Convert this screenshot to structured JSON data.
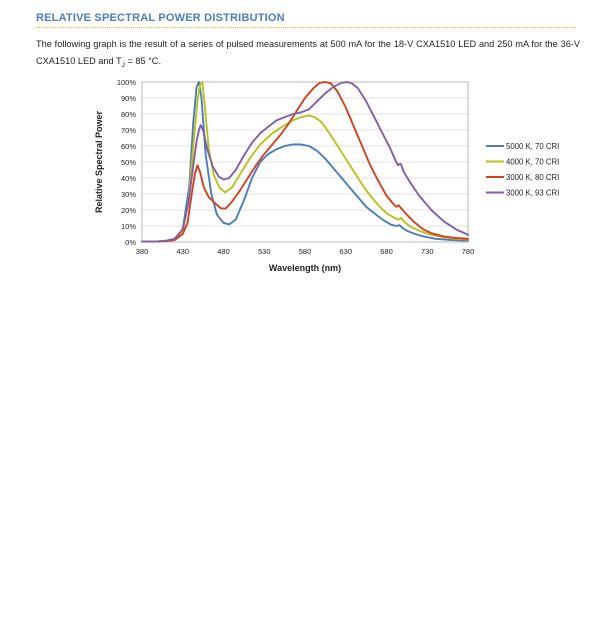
{
  "section_title": "RELATIVE SPECTRAL POWER DISTRIBUTION",
  "intro": {
    "before_sub": "The following graph is the result of a series of pulsed measurements at 500 mA for the 18-V CXA1510 LED and 250 mA for the 36-V CXA1510 LED and T",
    "sub": "J",
    "after_sub": " = 85 °C."
  },
  "chart_data": {
    "type": "line",
    "title": "",
    "xlabel": "Wavelength (nm)",
    "ylabel": "Relative Spectral Power",
    "xlim": [
      380,
      780
    ],
    "ylim": [
      0,
      100
    ],
    "x_ticks": [
      "380",
      "430",
      "480",
      "530",
      "580",
      "630",
      "680",
      "730",
      "780"
    ],
    "y_ticks": [
      "0%",
      "10%",
      "20%",
      "30%",
      "40%",
      "50%",
      "60%",
      "70%",
      "80%",
      "90%",
      "100%"
    ],
    "grid": true,
    "legend_position": "right",
    "series": [
      {
        "name": "5000 K, 70 CRI",
        "color": "#4a7ebb",
        "points": [
          [
            380,
            0.3
          ],
          [
            400,
            0.4
          ],
          [
            410,
            0.8
          ],
          [
            420,
            2
          ],
          [
            430,
            8
          ],
          [
            438,
            35
          ],
          [
            443,
            75
          ],
          [
            447,
            97
          ],
          [
            450,
            100
          ],
          [
            453,
            90
          ],
          [
            458,
            55
          ],
          [
            465,
            30
          ],
          [
            472,
            17
          ],
          [
            480,
            12
          ],
          [
            487,
            11
          ],
          [
            495,
            14
          ],
          [
            505,
            26
          ],
          [
            515,
            40
          ],
          [
            525,
            50
          ],
          [
            535,
            55
          ],
          [
            545,
            58
          ],
          [
            555,
            60
          ],
          [
            565,
            61
          ],
          [
            575,
            61
          ],
          [
            585,
            60
          ],
          [
            595,
            57
          ],
          [
            605,
            52
          ],
          [
            615,
            46
          ],
          [
            625,
            40
          ],
          [
            635,
            34
          ],
          [
            645,
            28
          ],
          [
            655,
            22
          ],
          [
            665,
            18
          ],
          [
            675,
            14
          ],
          [
            685,
            11
          ],
          [
            692,
            10
          ],
          [
            696,
            10.5
          ],
          [
            699,
            9
          ],
          [
            705,
            7
          ],
          [
            715,
            5
          ],
          [
            725,
            3.5
          ],
          [
            740,
            2
          ],
          [
            760,
            1.2
          ],
          [
            780,
            0.8
          ]
        ]
      },
      {
        "name": "4000 K, 70 CRI",
        "color": "#b8c21e",
        "points": [
          [
            380,
            0.3
          ],
          [
            400,
            0.4
          ],
          [
            410,
            0.8
          ],
          [
            420,
            2
          ],
          [
            430,
            7
          ],
          [
            437,
            25
          ],
          [
            443,
            60
          ],
          [
            448,
            88
          ],
          [
            451,
            98
          ],
          [
            454,
            100
          ],
          [
            457,
            85
          ],
          [
            462,
            58
          ],
          [
            468,
            42
          ],
          [
            475,
            34
          ],
          [
            482,
            31
          ],
          [
            490,
            34
          ],
          [
            500,
            42
          ],
          [
            512,
            52
          ],
          [
            525,
            61
          ],
          [
            540,
            68
          ],
          [
            555,
            73
          ],
          [
            565,
            76
          ],
          [
            575,
            78
          ],
          [
            585,
            79
          ],
          [
            592,
            78
          ],
          [
            600,
            75
          ],
          [
            610,
            68
          ],
          [
            620,
            60
          ],
          [
            630,
            52
          ],
          [
            640,
            44
          ],
          [
            650,
            36
          ],
          [
            660,
            29
          ],
          [
            670,
            23
          ],
          [
            680,
            18
          ],
          [
            690,
            15
          ],
          [
            695,
            14
          ],
          [
            698,
            15
          ],
          [
            701,
            13
          ],
          [
            708,
            10
          ],
          [
            720,
            7
          ],
          [
            735,
            4.5
          ],
          [
            750,
            3
          ],
          [
            765,
            2
          ],
          [
            780,
            1.5
          ]
        ]
      },
      {
        "name": "3000 K, 80 CRI",
        "color": "#d34120",
        "points": [
          [
            380,
            0.3
          ],
          [
            400,
            0.4
          ],
          [
            410,
            0.6
          ],
          [
            420,
            1.2
          ],
          [
            430,
            5
          ],
          [
            436,
            12
          ],
          [
            441,
            30
          ],
          [
            445,
            43
          ],
          [
            448,
            48
          ],
          [
            451,
            44
          ],
          [
            456,
            34
          ],
          [
            462,
            28
          ],
          [
            470,
            24
          ],
          [
            477,
            21
          ],
          [
            483,
            21
          ],
          [
            490,
            25
          ],
          [
            500,
            32
          ],
          [
            510,
            40
          ],
          [
            520,
            48
          ],
          [
            530,
            55
          ],
          [
            540,
            61
          ],
          [
            550,
            67
          ],
          [
            560,
            74
          ],
          [
            570,
            82
          ],
          [
            580,
            90
          ],
          [
            590,
            96
          ],
          [
            598,
            99.5
          ],
          [
            605,
            100
          ],
          [
            612,
            99
          ],
          [
            620,
            94
          ],
          [
            630,
            84
          ],
          [
            640,
            72
          ],
          [
            650,
            60
          ],
          [
            660,
            48
          ],
          [
            670,
            38
          ],
          [
            680,
            29
          ],
          [
            688,
            24
          ],
          [
            692,
            22
          ],
          [
            695,
            23
          ],
          [
            698,
            21
          ],
          [
            705,
            17
          ],
          [
            715,
            12
          ],
          [
            725,
            8
          ],
          [
            735,
            5.5
          ],
          [
            750,
            3.5
          ],
          [
            765,
            2.5
          ],
          [
            780,
            2
          ]
        ]
      },
      {
        "name": "3000 K, 93 CRI",
        "color": "#7f60a8",
        "points": [
          [
            380,
            0.3
          ],
          [
            400,
            0.4
          ],
          [
            410,
            0.8
          ],
          [
            420,
            2
          ],
          [
            430,
            8
          ],
          [
            437,
            25
          ],
          [
            443,
            48
          ],
          [
            447,
            63
          ],
          [
            450,
            70
          ],
          [
            452,
            73
          ],
          [
            455,
            70
          ],
          [
            460,
            58
          ],
          [
            467,
            47
          ],
          [
            474,
            41
          ],
          [
            480,
            39
          ],
          [
            487,
            40
          ],
          [
            495,
            45
          ],
          [
            505,
            54
          ],
          [
            515,
            62
          ],
          [
            525,
            68
          ],
          [
            535,
            72
          ],
          [
            545,
            76
          ],
          [
            555,
            78
          ],
          [
            565,
            80
          ],
          [
            575,
            81
          ],
          [
            585,
            83
          ],
          [
            595,
            88
          ],
          [
            605,
            93
          ],
          [
            615,
            97
          ],
          [
            625,
            99.5
          ],
          [
            632,
            100
          ],
          [
            638,
            99
          ],
          [
            645,
            96
          ],
          [
            655,
            88
          ],
          [
            665,
            78
          ],
          [
            675,
            68
          ],
          [
            685,
            58
          ],
          [
            691,
            51
          ],
          [
            694,
            48
          ],
          [
            697,
            49
          ],
          [
            699,
            47
          ],
          [
            701,
            44
          ],
          [
            708,
            38
          ],
          [
            720,
            29
          ],
          [
            735,
            20
          ],
          [
            750,
            13
          ],
          [
            765,
            8
          ],
          [
            780,
            4.5
          ]
        ]
      }
    ]
  }
}
